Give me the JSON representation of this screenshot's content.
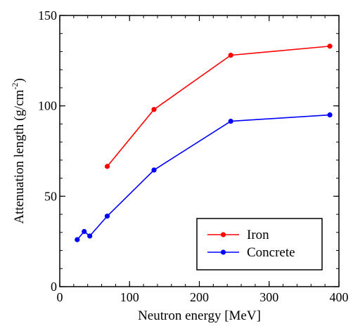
{
  "chart_data": {
    "type": "line",
    "title": "",
    "xlabel": "Neutron energy [MeV]",
    "ylabel": {
      "main": "Attenuation length (g/cm",
      "sup": "-2",
      "close": ")"
    },
    "xlim": [
      0,
      400
    ],
    "ylim": [
      0,
      150
    ],
    "xticks": [
      0,
      100,
      200,
      300,
      400
    ],
    "yticks": [
      0,
      50,
      100,
      150
    ],
    "x_minor_step": 20,
    "y_minor_step": 10,
    "grid": false,
    "legend_position": "bottom-right",
    "series": [
      {
        "name": "Iron",
        "color": "#ff0000",
        "x": [
          68,
          135,
          245,
          387
        ],
        "y": [
          66.5,
          98,
          128,
          133
        ]
      },
      {
        "name": "Concrete",
        "color": "#0000ff",
        "x": [
          25,
          35,
          43,
          68,
          135,
          245,
          387
        ],
        "y": [
          26,
          30.5,
          28,
          39,
          64.5,
          91.5,
          95
        ]
      }
    ]
  }
}
